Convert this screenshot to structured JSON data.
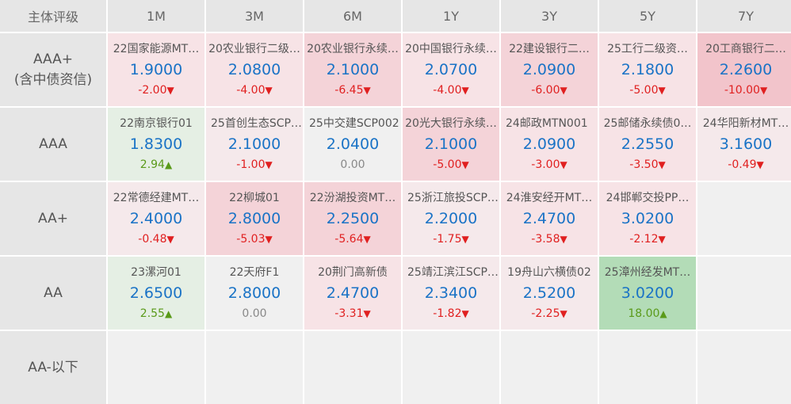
{
  "header": {
    "corner": "主体评级",
    "columns": [
      "1M",
      "3M",
      "6M",
      "1Y",
      "3Y",
      "5Y",
      "7Y"
    ]
  },
  "rows": [
    {
      "label": "AAA+",
      "label2": "(含中债资信)",
      "cells": [
        {
          "bond": "22国家能源MT…",
          "rate": "1.9000",
          "change": "-2.00",
          "dir": "down",
          "bg": "#f7e3e6"
        },
        {
          "bond": "20农业银行二级…",
          "rate": "2.0800",
          "change": "-4.00",
          "dir": "down",
          "bg": "#f7e3e6"
        },
        {
          "bond": "20农业银行永续…",
          "rate": "2.1000",
          "change": "-6.45",
          "dir": "down",
          "bg": "#f4d3d8"
        },
        {
          "bond": "20中国银行永续…",
          "rate": "2.0700",
          "change": "-4.00",
          "dir": "down",
          "bg": "#f7e3e6"
        },
        {
          "bond": "22建设银行二…",
          "rate": "2.0900",
          "change": "-6.00",
          "dir": "down",
          "bg": "#f4d3d8"
        },
        {
          "bond": "25工行二级资…",
          "rate": "2.1800",
          "change": "-5.00",
          "dir": "down",
          "bg": "#f7e3e6"
        },
        {
          "bond": "20工商银行二…",
          "rate": "2.2600",
          "change": "-10.00",
          "dir": "down",
          "bg": "#f2c4cb"
        }
      ]
    },
    {
      "label": "AAA",
      "label2": "",
      "cells": [
        {
          "bond": "22南京银行01",
          "rate": "1.8300",
          "change": "2.94",
          "dir": "up",
          "bg": "#e5efe4"
        },
        {
          "bond": "25首创生态SCP…",
          "rate": "2.1000",
          "change": "-1.00",
          "dir": "down",
          "bg": "#f5e9eb"
        },
        {
          "bond": "25中交建SCP002",
          "rate": "2.0400",
          "change": "0.00",
          "dir": "flat",
          "bg": "#f0f0f0"
        },
        {
          "bond": "20光大银行永续…",
          "rate": "2.1000",
          "change": "-5.00",
          "dir": "down",
          "bg": "#f4d3d8"
        },
        {
          "bond": "24邮政MTN001",
          "rate": "2.0900",
          "change": "-3.00",
          "dir": "down",
          "bg": "#f7e3e6"
        },
        {
          "bond": "25邮储永续债0…",
          "rate": "2.2550",
          "change": "-3.50",
          "dir": "down",
          "bg": "#f7e3e6"
        },
        {
          "bond": "24华阳新材MT…",
          "rate": "3.1600",
          "change": "-0.49",
          "dir": "down",
          "bg": "#f5e9eb"
        }
      ]
    },
    {
      "label": "AA+",
      "label2": "",
      "cells": [
        {
          "bond": "22常德经建MT…",
          "rate": "2.4000",
          "change": "-0.48",
          "dir": "down",
          "bg": "#f5e9eb"
        },
        {
          "bond": "22柳城01",
          "rate": "2.8000",
          "change": "-5.03",
          "dir": "down",
          "bg": "#f4d3d8"
        },
        {
          "bond": "22汾湖投资MT…",
          "rate": "2.2500",
          "change": "-5.64",
          "dir": "down",
          "bg": "#f4d3d8"
        },
        {
          "bond": "25浙江旅投SCP…",
          "rate": "2.2000",
          "change": "-1.75",
          "dir": "down",
          "bg": "#f5e9eb"
        },
        {
          "bond": "24淮安经开MT…",
          "rate": "2.4700",
          "change": "-3.58",
          "dir": "down",
          "bg": "#f7e3e6"
        },
        {
          "bond": "24邯郸交投PP…",
          "rate": "3.0200",
          "change": "-2.12",
          "dir": "down",
          "bg": "#f7e3e6"
        },
        null
      ]
    },
    {
      "label": "AA",
      "label2": "",
      "cells": [
        {
          "bond": "23漯河01",
          "rate": "2.6500",
          "change": "2.55",
          "dir": "up",
          "bg": "#e5efe4"
        },
        {
          "bond": "22天府F1",
          "rate": "2.8000",
          "change": "0.00",
          "dir": "flat",
          "bg": "#f0f0f0"
        },
        {
          "bond": "20荆门高新债",
          "rate": "2.4700",
          "change": "-3.31",
          "dir": "down",
          "bg": "#f7e3e6"
        },
        {
          "bond": "25靖江滨江SCP…",
          "rate": "2.3400",
          "change": "-1.82",
          "dir": "down",
          "bg": "#f5e9eb"
        },
        {
          "bond": "19舟山六横债02",
          "rate": "2.5200",
          "change": "-2.25",
          "dir": "down",
          "bg": "#f5e9eb"
        },
        {
          "bond": "25漳州经发MT…",
          "rate": "3.0200",
          "change": "18.00",
          "dir": "up",
          "bg": "#b3dcb7"
        },
        null
      ]
    },
    {
      "label": "AA-以下",
      "label2": "",
      "cells": [
        null,
        null,
        null,
        null,
        null,
        null,
        null
      ]
    }
  ],
  "icons": {
    "down": "triangle-down-icon",
    "up": "triangle-up-icon"
  },
  "colors": {
    "rate": "#1a73c6",
    "down": "#e02020",
    "up": "#5a9a1a",
    "header_bg": "#e6e6e6"
  }
}
